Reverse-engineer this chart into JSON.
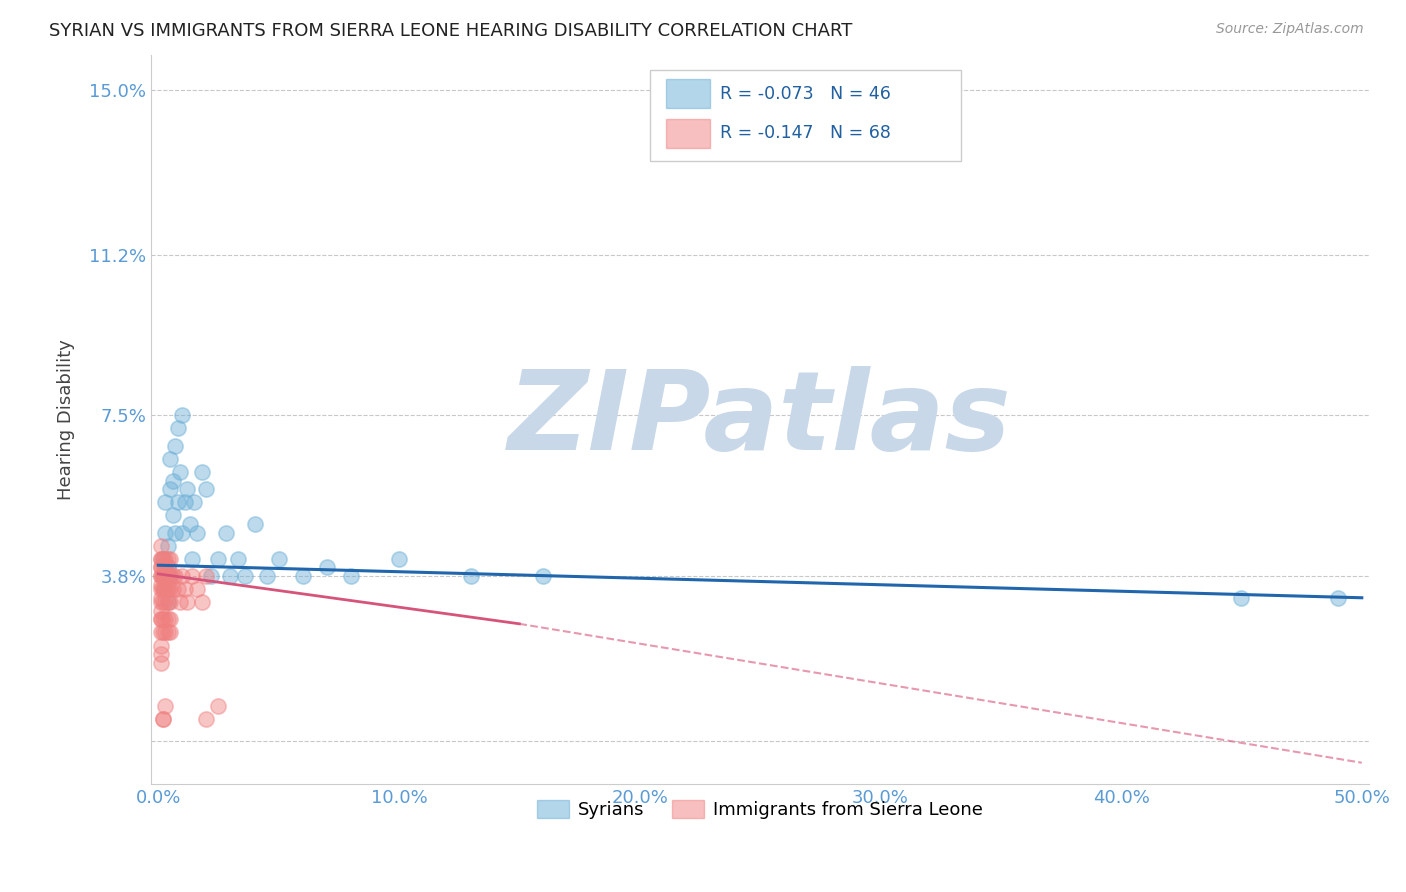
{
  "title": "SYRIAN VS IMMIGRANTS FROM SIERRA LEONE HEARING DISABILITY CORRELATION CHART",
  "source": "Source: ZipAtlas.com",
  "ylabel": "Hearing Disability",
  "xlabel": "",
  "xlim": [
    -0.003,
    0.503
  ],
  "ylim": [
    -0.01,
    0.158
  ],
  "yticks": [
    0.0,
    0.038,
    0.075,
    0.112,
    0.15
  ],
  "ytick_labels": [
    "",
    "3.8%",
    "7.5%",
    "11.2%",
    "15.0%"
  ],
  "xticks": [
    0.0,
    0.1,
    0.2,
    0.3,
    0.4,
    0.5
  ],
  "xtick_labels": [
    "0.0%",
    "10.0%",
    "20.0%",
    "30.0%",
    "40.0%",
    "50.0%"
  ],
  "series1_name": "Syrians",
  "series2_name": "Immigrants from Sierra Leone",
  "series1_color": "#6baed6",
  "series2_color": "#f08080",
  "trendline1_color": "#2166ac",
  "trendline2_color": "#d6547a",
  "watermark": "ZIPatlas",
  "watermark_color": "#c8d8e8",
  "background_color": "#ffffff",
  "grid_color": "#c8c8c8",
  "title_color": "#222222",
  "axis_label_color": "#444444",
  "tick_label_color": "#5b9bd5",
  "series1_R": -0.073,
  "series1_N": 46,
  "series2_R": -0.147,
  "series2_N": 68,
  "series1_x": [
    0.002,
    0.002,
    0.003,
    0.003,
    0.003,
    0.004,
    0.004,
    0.004,
    0.004,
    0.005,
    0.005,
    0.005,
    0.006,
    0.006,
    0.007,
    0.007,
    0.008,
    0.008,
    0.009,
    0.01,
    0.01,
    0.011,
    0.012,
    0.013,
    0.014,
    0.015,
    0.016,
    0.018,
    0.02,
    0.022,
    0.025,
    0.028,
    0.03,
    0.033,
    0.036,
    0.04,
    0.045,
    0.05,
    0.06,
    0.07,
    0.08,
    0.1,
    0.13,
    0.16,
    0.45,
    0.49
  ],
  "series1_y": [
    0.038,
    0.042,
    0.055,
    0.048,
    0.035,
    0.04,
    0.038,
    0.045,
    0.032,
    0.038,
    0.058,
    0.065,
    0.052,
    0.06,
    0.048,
    0.068,
    0.072,
    0.055,
    0.062,
    0.075,
    0.048,
    0.055,
    0.058,
    0.05,
    0.042,
    0.055,
    0.048,
    0.062,
    0.058,
    0.038,
    0.042,
    0.048,
    0.038,
    0.042,
    0.038,
    0.05,
    0.038,
    0.042,
    0.038,
    0.04,
    0.038,
    0.042,
    0.038,
    0.038,
    0.033,
    0.033
  ],
  "series2_x": [
    0.001,
    0.001,
    0.001,
    0.001,
    0.001,
    0.001,
    0.001,
    0.001,
    0.001,
    0.001,
    0.001,
    0.001,
    0.001,
    0.001,
    0.001,
    0.001,
    0.001,
    0.001,
    0.002,
    0.002,
    0.002,
    0.002,
    0.002,
    0.002,
    0.002,
    0.002,
    0.002,
    0.003,
    0.003,
    0.003,
    0.003,
    0.003,
    0.003,
    0.003,
    0.003,
    0.003,
    0.004,
    0.004,
    0.004,
    0.004,
    0.004,
    0.004,
    0.004,
    0.004,
    0.004,
    0.005,
    0.005,
    0.005,
    0.005,
    0.005,
    0.005,
    0.006,
    0.006,
    0.007,
    0.008,
    0.009,
    0.01,
    0.011,
    0.012,
    0.014,
    0.016,
    0.018,
    0.02,
    0.02,
    0.025,
    0.002,
    0.002,
    0.003
  ],
  "series2_y": [
    0.038,
    0.035,
    0.032,
    0.028,
    0.025,
    0.042,
    0.04,
    0.038,
    0.036,
    0.033,
    0.03,
    0.028,
    0.022,
    0.02,
    0.018,
    0.045,
    0.042,
    0.04,
    0.038,
    0.035,
    0.032,
    0.028,
    0.025,
    0.042,
    0.04,
    0.038,
    0.035,
    0.04,
    0.038,
    0.035,
    0.032,
    0.028,
    0.025,
    0.042,
    0.04,
    0.038,
    0.038,
    0.035,
    0.032,
    0.028,
    0.025,
    0.042,
    0.04,
    0.038,
    0.035,
    0.038,
    0.035,
    0.032,
    0.028,
    0.025,
    0.042,
    0.038,
    0.035,
    0.038,
    0.035,
    0.032,
    0.038,
    0.035,
    0.032,
    0.038,
    0.035,
    0.032,
    0.038,
    0.005,
    0.008,
    0.005,
    0.005,
    0.008
  ]
}
